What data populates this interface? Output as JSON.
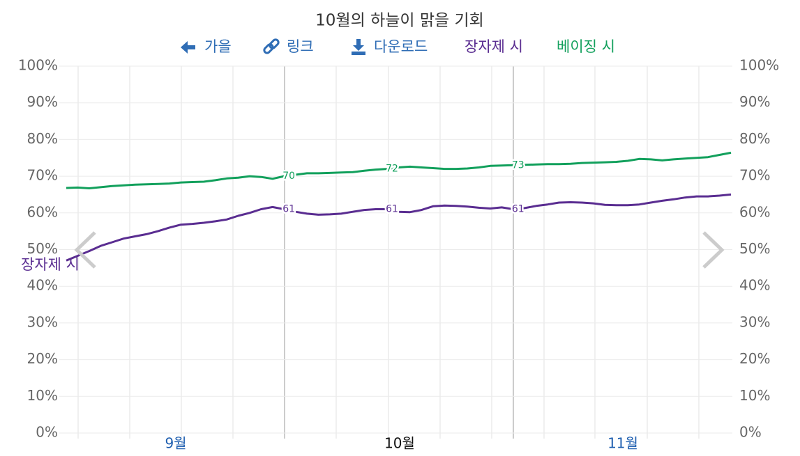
{
  "chart_data": {
    "type": "line",
    "title": "10월의 하늘이 맑을 기회",
    "toolbar": [
      "가을",
      "링크",
      "다운로드"
    ],
    "x_labels": [
      "9월",
      "10월",
      "11월"
    ],
    "ylim": [
      0,
      100
    ],
    "yticks": [
      {
        "value": 0,
        "label": "0%"
      },
      {
        "value": 10,
        "label": "10%"
      },
      {
        "value": 20,
        "label": "20%"
      },
      {
        "value": 30,
        "label": "30%"
      },
      {
        "value": 40,
        "label": "40%"
      },
      {
        "value": 50,
        "label": "50%"
      },
      {
        "value": 60,
        "label": "60%"
      },
      {
        "value": 70,
        "label": "70%"
      },
      {
        "value": 80,
        "label": "80%"
      },
      {
        "value": 90,
        "label": "90%"
      },
      {
        "value": 100,
        "label": "100%"
      }
    ],
    "grid": true,
    "series": [
      {
        "name": "장자제 시",
        "color": "#5a2d91",
        "values": [
          47.0,
          48.3,
          49.6,
          51.0,
          52.0,
          53.0,
          53.6,
          54.2,
          55.0,
          56.0,
          56.8,
          57.0,
          57.3,
          57.7,
          58.2,
          59.2,
          60.0,
          61.0,
          61.6,
          61.0,
          60.3,
          59.8,
          59.5,
          59.6,
          59.8,
          60.3,
          60.8,
          61.0,
          61.0,
          60.3,
          60.2,
          60.8,
          61.8,
          62.0,
          61.9,
          61.7,
          61.4,
          61.2,
          61.5,
          61.0,
          61.3,
          61.9,
          62.3,
          62.8,
          62.9,
          62.8,
          62.6,
          62.2,
          62.1,
          62.1,
          62.3,
          62.8,
          63.3,
          63.7,
          64.2,
          64.5,
          64.5,
          64.7,
          65.0
        ],
        "value_labels": [
          null,
          null,
          null,
          null,
          null,
          null,
          null,
          null,
          null,
          null,
          null,
          null,
          null,
          null,
          null,
          null,
          null,
          null,
          null,
          "61",
          null,
          null,
          null,
          null,
          null,
          null,
          null,
          null,
          "61",
          null,
          null,
          null,
          null,
          null,
          null,
          null,
          null,
          null,
          null,
          "61",
          null,
          null,
          null,
          null,
          null,
          null,
          null,
          null,
          null,
          null,
          null,
          null,
          null,
          null,
          null,
          null,
          null,
          null,
          null
        ]
      },
      {
        "name": "베이징 시",
        "color": "#12a05c",
        "values": [
          66.8,
          66.9,
          66.7,
          67.0,
          67.3,
          67.5,
          67.7,
          67.8,
          67.9,
          68.0,
          68.3,
          68.4,
          68.5,
          68.9,
          69.4,
          69.6,
          70.0,
          69.8,
          69.3,
          70.0,
          70.4,
          70.8,
          70.8,
          70.9,
          71.0,
          71.1,
          71.5,
          71.8,
          72.0,
          72.4,
          72.6,
          72.4,
          72.2,
          72.0,
          72.0,
          72.1,
          72.4,
          72.8,
          72.9,
          73.0,
          73.1,
          73.2,
          73.3,
          73.3,
          73.4,
          73.6,
          73.7,
          73.8,
          73.9,
          74.2,
          74.7,
          74.6,
          74.3,
          74.6,
          74.8,
          75.0,
          75.2,
          75.8,
          76.4
        ],
        "value_labels": [
          null,
          null,
          null,
          null,
          null,
          null,
          null,
          null,
          null,
          null,
          null,
          null,
          null,
          null,
          null,
          null,
          null,
          null,
          null,
          "70",
          null,
          null,
          null,
          null,
          null,
          null,
          null,
          null,
          "72",
          null,
          null,
          null,
          null,
          null,
          null,
          null,
          null,
          null,
          null,
          "73",
          null,
          null,
          null,
          null,
          null,
          null,
          null,
          null,
          null,
          null,
          null,
          null,
          null,
          null,
          null,
          null,
          null,
          null,
          null
        ]
      }
    ]
  }
}
